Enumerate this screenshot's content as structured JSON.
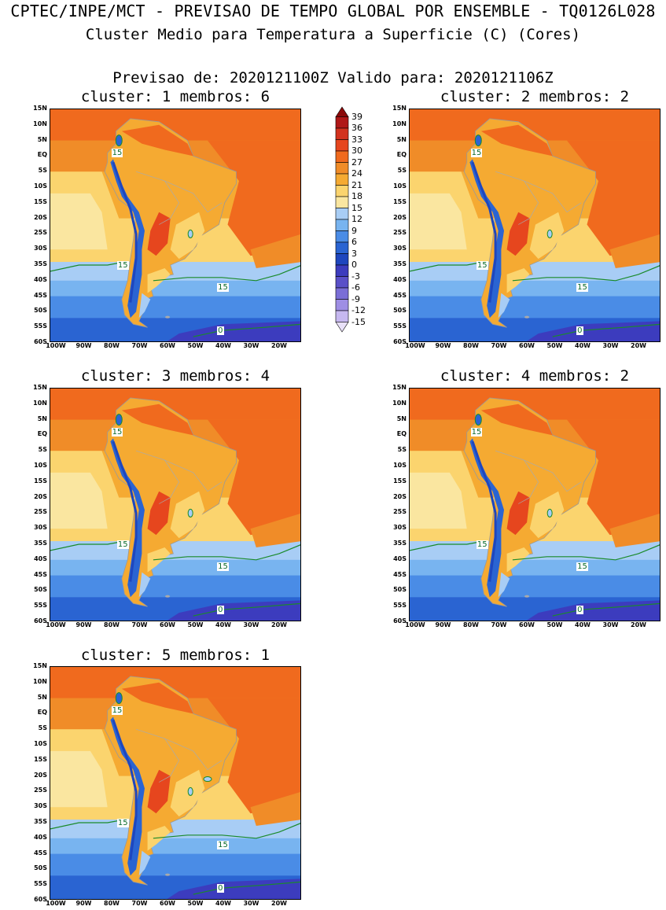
{
  "header": {
    "title_line1": "CPTEC/INPE/MCT - PREVISAO DE TEMPO GLOBAL POR ENSEMBLE - TQ0126L028",
    "title_line2": "Cluster Medio para Temperatura a Superficie (C) (Cores)",
    "forecast_line": "Previsao de: 2020121100Z   Valido para: 2020121106Z"
  },
  "axes": {
    "lat_ticks": [
      "15N",
      "10N",
      "5N",
      "EQ",
      "5S",
      "10S",
      "15S",
      "20S",
      "25S",
      "30S",
      "35S",
      "40S",
      "45S",
      "50S",
      "55S",
      "60S"
    ],
    "lon_ticks": [
      "100W",
      "90W",
      "80W",
      "70W",
      "60W",
      "50W",
      "40W",
      "30W",
      "20W"
    ]
  },
  "colorbar": {
    "labels": [
      "39",
      "36",
      "33",
      "30",
      "27",
      "24",
      "21",
      "18",
      "15",
      "12",
      "9",
      "6",
      "3",
      "0",
      "-3",
      "-6",
      "-9",
      "-12",
      "-15"
    ],
    "colors": [
      "#8b0a0a",
      "#b01818",
      "#d2321e",
      "#e6461e",
      "#f06a1e",
      "#f08c28",
      "#f5aa32",
      "#fbd46e",
      "#fae6a0",
      "#a8cdf5",
      "#78b4f0",
      "#4a8ce6",
      "#2a64d2",
      "#1e46be",
      "#3c3cbe",
      "#5a50c8",
      "#7a6ed6",
      "#9e8ee4",
      "#c6b8f0"
    ]
  },
  "panels": [
    {
      "label": "cluster:",
      "cluster": "1",
      "members_label": "membros:",
      "members": "6",
      "contour_labels": [
        "15",
        "15",
        "15",
        "0"
      ]
    },
    {
      "label": "cluster:",
      "cluster": "2",
      "members_label": "membros:",
      "members": "2",
      "contour_labels": [
        "15",
        "15",
        "15",
        "0"
      ]
    },
    {
      "label": "cluster:",
      "cluster": "3",
      "members_label": "membros:",
      "members": "4",
      "contour_labels": [
        "15",
        "15",
        "15",
        "0"
      ]
    },
    {
      "label": "cluster:",
      "cluster": "4",
      "members_label": "membros:",
      "members": "2",
      "contour_labels": [
        "15",
        "15",
        "15",
        "0"
      ]
    },
    {
      "label": "cluster:",
      "cluster": "5",
      "members_label": "membros:",
      "members": "1",
      "contour_labels": [
        "15",
        "15",
        "15",
        "0"
      ]
    }
  ]
}
